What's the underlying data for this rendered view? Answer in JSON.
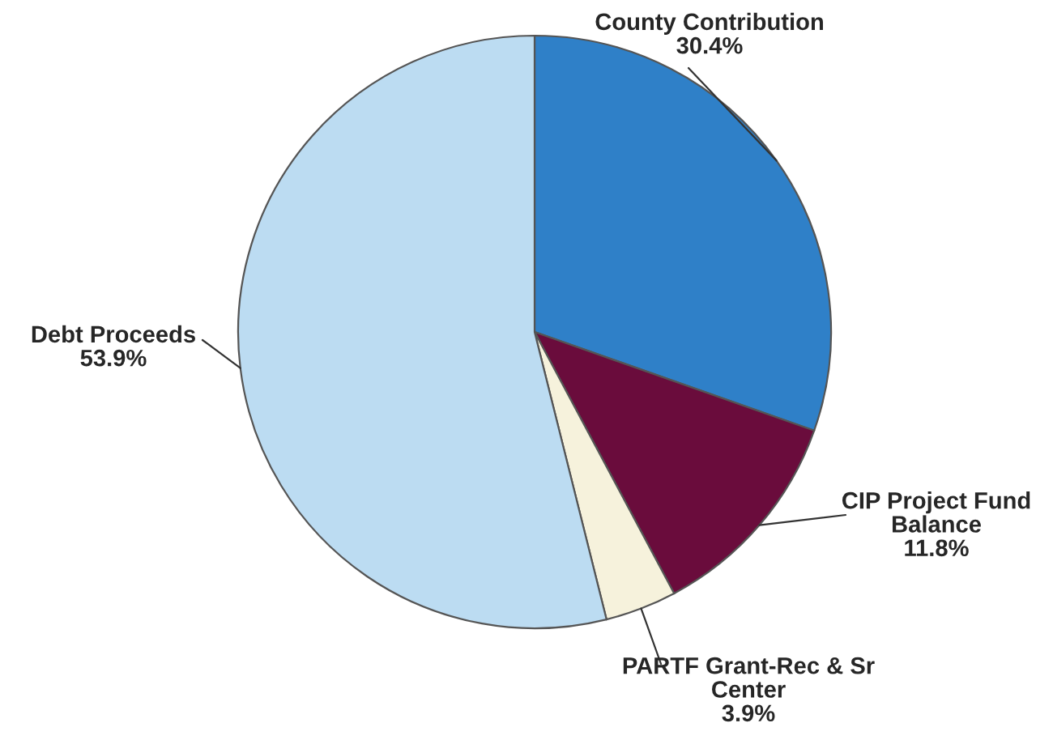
{
  "chart_data": {
    "type": "pie",
    "categories": [
      "County Contribution",
      "CIP Project Fund\nBalance",
      "PARTF Grant-Rec & Sr\nCenter",
      "Debt Proceeds"
    ],
    "values": [
      30.4,
      11.8,
      3.9,
      53.9
    ],
    "value_labels": [
      "30.4%",
      "11.8%",
      "3.9%",
      "53.9%"
    ],
    "colors": [
      "#2f80c8",
      "#6a0c3c",
      "#f6f2dc",
      "#bcdcf2"
    ]
  }
}
